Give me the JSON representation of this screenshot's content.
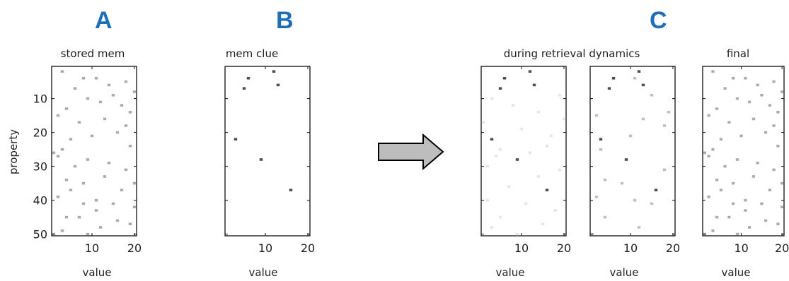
{
  "letters": {
    "a": "A",
    "b": "B",
    "c": "C"
  },
  "panels": [
    {
      "id": "stored",
      "title": "stored mem",
      "xlabel": "value",
      "ylabel": "property",
      "xticks": [
        "10",
        "20"
      ],
      "yticks": [
        "10",
        "20",
        "30",
        "40",
        "50"
      ],
      "cells": [
        [
          3,
          2,
          0.4
        ],
        [
          8,
          4,
          0.4
        ],
        [
          6,
          7,
          0.4
        ],
        [
          11,
          4,
          0.4
        ],
        [
          14,
          6,
          0.4
        ],
        [
          18,
          5,
          0.4
        ],
        [
          9,
          10,
          0.4
        ],
        [
          12,
          11,
          0.4
        ],
        [
          15,
          9,
          0.4
        ],
        [
          20,
          8,
          0.4
        ],
        [
          4,
          13,
          0.4
        ],
        [
          17,
          12,
          0.4
        ],
        [
          19,
          14,
          0.4
        ],
        [
          2,
          15,
          0.4
        ],
        [
          7,
          17,
          0.4
        ],
        [
          13,
          16,
          0.4
        ],
        [
          18,
          18,
          0.4
        ],
        [
          16,
          20,
          0.4
        ],
        [
          5,
          22,
          0.4
        ],
        [
          10,
          21,
          0.4
        ],
        [
          19,
          24,
          0.4
        ],
        [
          3,
          25,
          0.4
        ],
        [
          1,
          26,
          0.4
        ],
        [
          2,
          27,
          0.4
        ],
        [
          9,
          28,
          0.4
        ],
        [
          14,
          29,
          0.4
        ],
        [
          6,
          30,
          0.4
        ],
        [
          18,
          31,
          0.4
        ],
        [
          13,
          33,
          0.4
        ],
        [
          4,
          34,
          0.4
        ],
        [
          8,
          35,
          0.4
        ],
        [
          20,
          35,
          0.4
        ],
        [
          5,
          37,
          0.4
        ],
        [
          17,
          37,
          0.4
        ],
        [
          2,
          39,
          0.4
        ],
        [
          11,
          40,
          0.4
        ],
        [
          15,
          41,
          0.4
        ],
        [
          8,
          41,
          0.4
        ],
        [
          20,
          42,
          0.4
        ],
        [
          11,
          43,
          0.4
        ],
        [
          4,
          45,
          0.4
        ],
        [
          7,
          45,
          0.4
        ],
        [
          16,
          46,
          0.4
        ],
        [
          12,
          48,
          0.4
        ],
        [
          19,
          47,
          0.4
        ],
        [
          3,
          49,
          0.4
        ],
        [
          1,
          50,
          0.4
        ],
        [
          9,
          50,
          0.4
        ]
      ]
    },
    {
      "id": "clue",
      "title": "mem clue",
      "xlabel": "value",
      "xticks": [
        "10",
        "20"
      ],
      "cells": [
        [
          12,
          2,
          0.85
        ],
        [
          6,
          4,
          0.85
        ],
        [
          13,
          6,
          0.85
        ],
        [
          5,
          7,
          0.85
        ],
        [
          3,
          22,
          0.85
        ],
        [
          9,
          28,
          0.85
        ],
        [
          16,
          37,
          0.85
        ]
      ]
    },
    {
      "id": "during1",
      "title": "during retrieval dynamics",
      "xlabel": "value",
      "xticks": [
        "10",
        "20"
      ],
      "cells": [
        [
          6,
          4,
          0.85
        ],
        [
          12,
          2,
          0.85
        ],
        [
          13,
          6,
          0.85
        ],
        [
          5,
          7,
          0.85
        ],
        [
          3,
          22,
          0.85
        ],
        [
          9,
          28,
          0.85
        ],
        [
          16,
          37,
          0.85
        ],
        [
          3,
          10,
          0.12
        ],
        [
          8,
          12,
          0.12
        ],
        [
          14,
          14,
          0.12
        ],
        [
          19,
          9,
          0.12
        ],
        [
          1,
          17,
          0.12
        ],
        [
          10,
          19,
          0.12
        ],
        [
          17,
          21,
          0.12
        ],
        [
          5,
          25,
          0.12
        ],
        [
          12,
          26,
          0.12
        ],
        [
          2,
          30,
          0.12
        ],
        [
          19,
          31,
          0.12
        ],
        [
          14,
          33,
          0.12
        ],
        [
          7,
          36,
          0.12
        ],
        [
          2,
          40,
          0.12
        ],
        [
          11,
          41,
          0.12
        ],
        [
          18,
          43,
          0.12
        ],
        [
          5,
          45,
          0.12
        ],
        [
          15,
          47,
          0.12
        ],
        [
          3,
          48,
          0.12
        ],
        [
          9,
          50,
          0.12
        ],
        [
          20,
          16,
          0.12
        ],
        [
          4,
          27,
          0.12
        ],
        [
          16,
          24,
          0.12
        ]
      ]
    },
    {
      "id": "during2",
      "xlabel": "value",
      "xticks": [
        "10",
        "20"
      ],
      "cells": [
        [
          6,
          4,
          0.85
        ],
        [
          12,
          2,
          0.85
        ],
        [
          13,
          6,
          0.85
        ],
        [
          5,
          7,
          0.85
        ],
        [
          3,
          22,
          0.85
        ],
        [
          9,
          28,
          0.85
        ],
        [
          16,
          37,
          0.85
        ],
        [
          18,
          18,
          0.3
        ],
        [
          15,
          9,
          0.3
        ],
        [
          11,
          4,
          0.3
        ],
        [
          19,
          14,
          0.3
        ],
        [
          2,
          15,
          0.3
        ],
        [
          13,
          16,
          0.3
        ],
        [
          18,
          31,
          0.3
        ],
        [
          4,
          34,
          0.3
        ],
        [
          8,
          35,
          0.3
        ],
        [
          2,
          39,
          0.3
        ],
        [
          11,
          40,
          0.3
        ],
        [
          15,
          41,
          0.3
        ],
        [
          4,
          45,
          0.3
        ],
        [
          12,
          48,
          0.3
        ],
        [
          1,
          50,
          0.3
        ],
        [
          3,
          25,
          0.3
        ],
        [
          10,
          21,
          0.3
        ]
      ]
    },
    {
      "id": "final",
      "title": "final",
      "xlabel": "value",
      "xticks": [
        "10",
        "20"
      ],
      "cells": [
        [
          3,
          2,
          0.4
        ],
        [
          8,
          4,
          0.4
        ],
        [
          6,
          7,
          0.4
        ],
        [
          11,
          4,
          0.4
        ],
        [
          14,
          6,
          0.4
        ],
        [
          18,
          5,
          0.4
        ],
        [
          9,
          10,
          0.4
        ],
        [
          12,
          11,
          0.4
        ],
        [
          15,
          9,
          0.4
        ],
        [
          20,
          8,
          0.4
        ],
        [
          4,
          13,
          0.4
        ],
        [
          17,
          12,
          0.4
        ],
        [
          19,
          14,
          0.4
        ],
        [
          2,
          15,
          0.4
        ],
        [
          7,
          17,
          0.4
        ],
        [
          13,
          16,
          0.4
        ],
        [
          18,
          18,
          0.4
        ],
        [
          16,
          20,
          0.4
        ],
        [
          5,
          22,
          0.4
        ],
        [
          10,
          21,
          0.4
        ],
        [
          19,
          24,
          0.4
        ],
        [
          3,
          25,
          0.4
        ],
        [
          1,
          26,
          0.4
        ],
        [
          2,
          27,
          0.4
        ],
        [
          9,
          28,
          0.4
        ],
        [
          14,
          29,
          0.4
        ],
        [
          6,
          30,
          0.4
        ],
        [
          18,
          31,
          0.4
        ],
        [
          13,
          33,
          0.4
        ],
        [
          4,
          34,
          0.4
        ],
        [
          8,
          35,
          0.4
        ],
        [
          20,
          35,
          0.4
        ],
        [
          5,
          37,
          0.4
        ],
        [
          17,
          37,
          0.4
        ],
        [
          2,
          39,
          0.4
        ],
        [
          11,
          40,
          0.4
        ],
        [
          15,
          41,
          0.4
        ],
        [
          8,
          41,
          0.4
        ],
        [
          20,
          42,
          0.4
        ],
        [
          11,
          43,
          0.4
        ],
        [
          4,
          45,
          0.4
        ],
        [
          7,
          45,
          0.4
        ],
        [
          16,
          46,
          0.4
        ],
        [
          12,
          48,
          0.4
        ],
        [
          19,
          47,
          0.4
        ],
        [
          3,
          49,
          0.4
        ],
        [
          1,
          50,
          0.4
        ],
        [
          9,
          50,
          0.4
        ]
      ]
    }
  ]
}
